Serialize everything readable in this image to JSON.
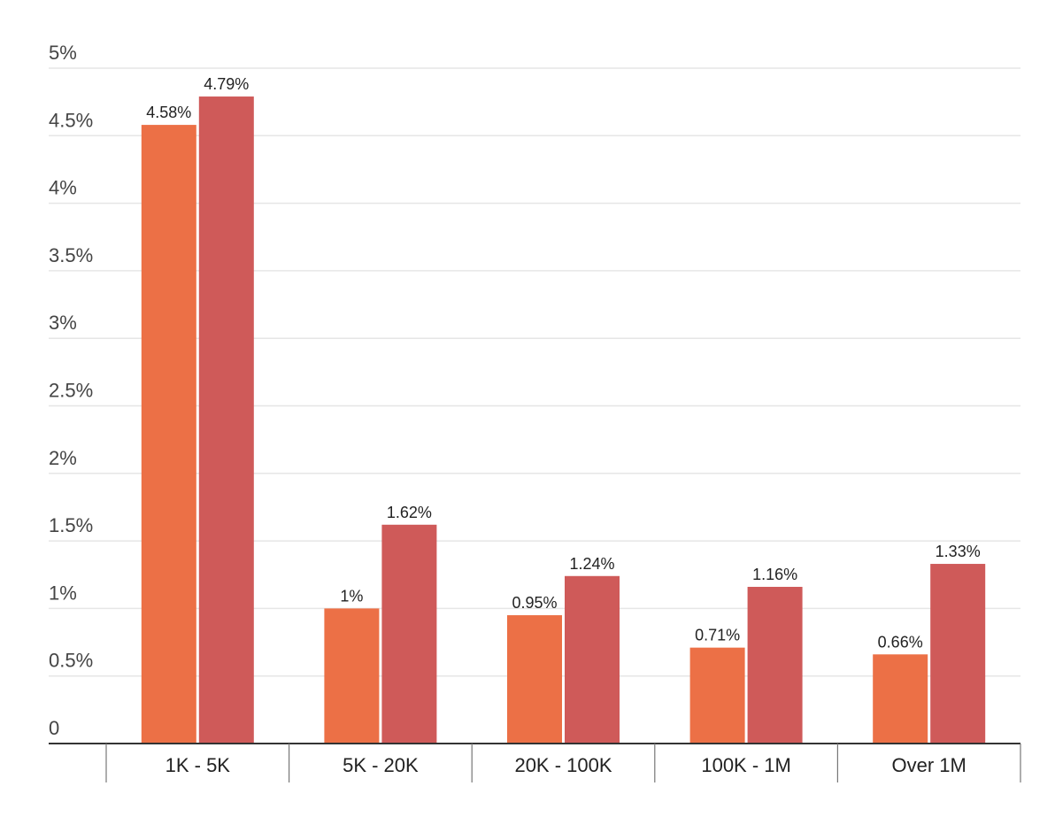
{
  "chart_data": {
    "type": "bar",
    "categories": [
      "1K - 5K",
      "5K - 20K",
      "20K - 100K",
      "100K - 1M",
      "Over 1M"
    ],
    "series": [
      {
        "values": [
          4.58,
          1,
          0.95,
          0.71,
          0.66
        ],
        "labels": [
          "4.58%",
          "1%",
          "0.95%",
          "0.71%",
          "0.66%"
        ],
        "color": "#ec7046"
      },
      {
        "values": [
          4.79,
          1.62,
          1.24,
          1.16,
          1.33
        ],
        "labels": [
          "4.79%",
          "1.62%",
          "1.24%",
          "1.16%",
          "1.33%"
        ],
        "color": "#cf5a59"
      }
    ],
    "y_ticks": [
      0,
      0.5,
      1,
      1.5,
      2,
      2.5,
      3,
      3.5,
      4,
      4.5,
      5
    ],
    "y_tick_labels": [
      "0",
      "0.5%",
      "1%",
      "1.5%",
      "2%",
      "2.5%",
      "3%",
      "3.5%",
      "4%",
      "4.5%",
      "5%"
    ],
    "ylim": [
      0,
      5
    ],
    "grid": true,
    "legend": "none",
    "title": "",
    "xlabel": "",
    "ylabel": "",
    "gridline_color": "#e6e6e6",
    "axis_color": "#333333"
  }
}
